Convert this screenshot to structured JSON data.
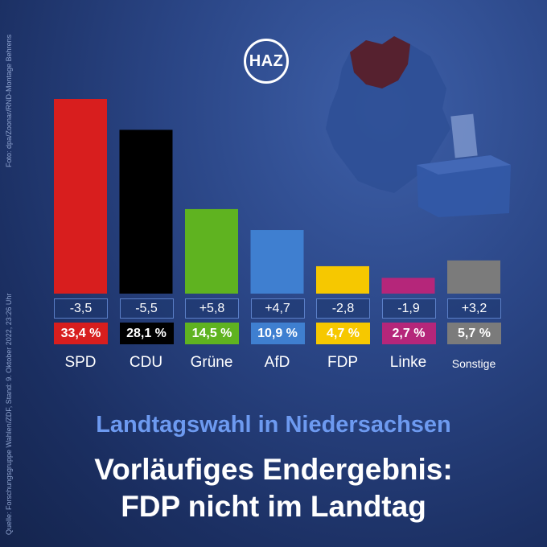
{
  "logo_text": "HAZ",
  "credit_photo": "Foto: dpa/Zoonar/RND-Montage Behrens",
  "credit_source": "Quelle: Forschungsgruppe Wahlen/ZDF, Stand: 9. Oktober 2022, 23:26 Uhr",
  "subtitle": "Landtagswahl in Niedersachsen",
  "title_line1": "Vorläufiges Endergebnis:",
  "title_line2": "FDP nicht im Landtag",
  "colors": {
    "SPD": "#d81e1e",
    "CDU": "#000000",
    "Grüne": "#5fb320",
    "AfD": "#3f7fd0",
    "FDP": "#f6c800",
    "Linke": "#b5267a",
    "Sonstige": "#7b7b7b"
  },
  "chart_data": {
    "type": "bar",
    "categories": [
      "SPD",
      "CDU",
      "Grüne",
      "AfD",
      "FDP",
      "Linke",
      "Sonstige"
    ],
    "values": [
      33.4,
      28.1,
      14.5,
      10.9,
      4.7,
      2.7,
      5.7
    ],
    "value_labels": [
      "33,4 %",
      "28,1 %",
      "14,5 %",
      "10,9 %",
      "4,7 %",
      "2,7 %",
      "5,7 %"
    ],
    "changes": [
      -3.5,
      -5.5,
      5.8,
      4.7,
      -2.8,
      -1.9,
      3.2
    ],
    "change_labels": [
      "-3,5",
      "-5,5",
      "+5,8",
      "+4,7",
      "-2,8",
      "-1,9",
      "+3,2"
    ],
    "title": "",
    "xlabel": "",
    "ylabel": "",
    "ylim": [
      0,
      34
    ],
    "grid": false
  }
}
